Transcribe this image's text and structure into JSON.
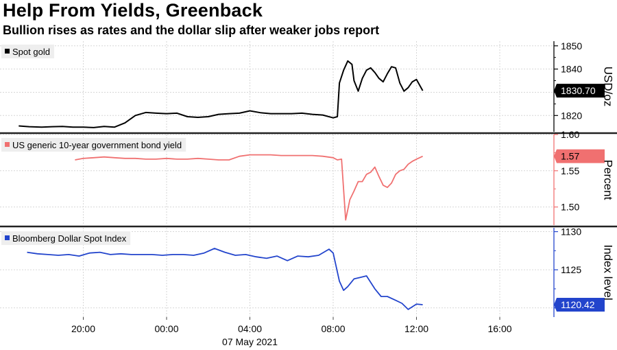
{
  "title": "Help From Yields, Greenback",
  "subtitle": "Bullion rises as rates and the dollar slip after weaker jobs report",
  "chart_data": [
    {
      "type": "line",
      "name": "Spot gold",
      "color": "#000000",
      "badge_text_color": "#ffffff",
      "ylabel": "USD/oz",
      "ylim": [
        1813,
        1852
      ],
      "yticks": [
        1820,
        1830,
        1840,
        1850
      ],
      "ytick_labels": [
        "1820",
        "1830",
        "1840",
        "1850"
      ],
      "last_value_label": "1830.70",
      "last_value": 1830.7,
      "x": [
        16.9,
        17.4,
        18.0,
        18.5,
        19.0,
        19.5,
        20.0,
        20.5,
        21.0,
        21.5,
        22.0,
        22.5,
        23.0,
        23.5,
        24.0,
        24.5,
        25.0,
        25.5,
        26.0,
        26.5,
        27.0,
        27.5,
        28.0,
        28.5,
        29.0,
        29.5,
        30.0,
        30.5,
        31.0,
        31.5,
        32.0,
        32.2,
        32.3,
        32.5,
        32.7,
        32.9,
        33.0,
        33.2,
        33.4,
        33.6,
        33.8,
        34.0,
        34.2,
        34.4,
        34.6,
        34.8,
        35.0,
        35.2,
        35.4,
        35.6,
        35.8,
        36.0,
        36.3
      ],
      "y": [
        1815.5,
        1815.2,
        1815.0,
        1815.2,
        1815.3,
        1815.0,
        1815.0,
        1814.8,
        1815.3,
        1815.0,
        1816.8,
        1820.0,
        1821.3,
        1821.0,
        1820.8,
        1821.0,
        1819.5,
        1819.2,
        1819.5,
        1820.5,
        1820.8,
        1821.0,
        1822.0,
        1821.2,
        1820.8,
        1820.8,
        1820.8,
        1821.0,
        1820.5,
        1820.2,
        1819.0,
        1819.5,
        1834.0,
        1839.5,
        1843.5,
        1842.0,
        1835.0,
        1830.5,
        1836.0,
        1839.5,
        1840.5,
        1838.5,
        1836.0,
        1834.5,
        1838.0,
        1841.0,
        1840.5,
        1834.0,
        1830.5,
        1832.0,
        1834.5,
        1835.5,
        1830.7
      ]
    },
    {
      "type": "line",
      "name": "US generic 10-year government bond yield",
      "color": "#f07070",
      "badge_text_color": "#000000",
      "ylabel": "Percent",
      "ylim": [
        1.475,
        1.6
      ],
      "yticks": [
        1.5,
        1.55,
        1.6
      ],
      "ytick_labels": [
        "1.50",
        "1.55",
        "1.60"
      ],
      "last_value_label": "1.57",
      "last_value": 1.57,
      "x": [
        19.6,
        20.0,
        20.5,
        21.0,
        21.5,
        22.0,
        22.5,
        23.0,
        23.5,
        24.0,
        24.5,
        25.0,
        25.5,
        26.0,
        26.5,
        27.0,
        27.5,
        28.0,
        28.5,
        29.0,
        29.5,
        30.0,
        30.5,
        31.0,
        31.5,
        32.0,
        32.2,
        32.4,
        32.45,
        32.6,
        32.8,
        33.0,
        33.2,
        33.4,
        33.6,
        33.8,
        34.0,
        34.2,
        34.4,
        34.6,
        34.8,
        35.0,
        35.2,
        35.4,
        35.6,
        35.8,
        36.0,
        36.3
      ],
      "y": [
        1.565,
        1.567,
        1.568,
        1.569,
        1.568,
        1.567,
        1.567,
        1.566,
        1.566,
        1.567,
        1.566,
        1.566,
        1.567,
        1.566,
        1.565,
        1.565,
        1.57,
        1.572,
        1.572,
        1.572,
        1.571,
        1.571,
        1.571,
        1.571,
        1.57,
        1.568,
        1.565,
        1.566,
        1.545,
        1.482,
        1.51,
        1.522,
        1.535,
        1.535,
        1.545,
        1.548,
        1.555,
        1.542,
        1.53,
        1.527,
        1.533,
        1.545,
        1.55,
        1.552,
        1.559,
        1.563,
        1.566,
        1.57
      ]
    },
    {
      "type": "line",
      "name": "Bloomberg Dollar Spot Index",
      "color": "#2244cc",
      "badge_text_color": "#ffffff",
      "ylabel": "Index level",
      "ylim": [
        1118.8,
        1130.5
      ],
      "yticks": [
        1120,
        1125,
        1130
      ],
      "ytick_labels": [
        "1120",
        "1125",
        "1130"
      ],
      "last_value_label": "1120.42",
      "last_value": 1120.42,
      "x": [
        17.3,
        17.8,
        18.3,
        18.8,
        19.3,
        19.8,
        20.3,
        20.8,
        21.3,
        21.8,
        22.3,
        22.8,
        23.3,
        23.8,
        24.3,
        24.8,
        25.3,
        25.8,
        26.3,
        26.8,
        27.3,
        27.8,
        28.3,
        28.8,
        29.3,
        29.8,
        30.3,
        30.8,
        31.3,
        31.8,
        32.0,
        32.3,
        32.5,
        32.7,
        33.0,
        33.3,
        33.6,
        34.0,
        34.3,
        34.6,
        35.0,
        35.3,
        35.6,
        36.0,
        36.3
      ],
      "y": [
        1127.3,
        1127.1,
        1127.0,
        1126.9,
        1127.0,
        1126.8,
        1127.2,
        1127.3,
        1127.0,
        1127.1,
        1127.0,
        1127.0,
        1127.0,
        1126.9,
        1127.0,
        1127.0,
        1126.9,
        1127.2,
        1127.8,
        1127.3,
        1126.9,
        1127.0,
        1126.7,
        1126.5,
        1126.8,
        1126.2,
        1126.8,
        1126.7,
        1126.9,
        1127.7,
        1127.2,
        1123.5,
        1122.3,
        1122.8,
        1123.8,
        1124.0,
        1124.2,
        1122.5,
        1121.5,
        1121.5,
        1121.0,
        1120.6,
        1119.8,
        1120.5,
        1120.42
      ]
    }
  ],
  "x_axis": {
    "ticks": [
      20,
      24,
      28,
      32,
      36,
      40
    ],
    "tick_labels": [
      "20:00",
      "00:00",
      "04:00",
      "08:00",
      "12:00",
      "16:00"
    ],
    "date_label": "07 May 2021",
    "range": [
      16.0,
      42.6
    ]
  }
}
